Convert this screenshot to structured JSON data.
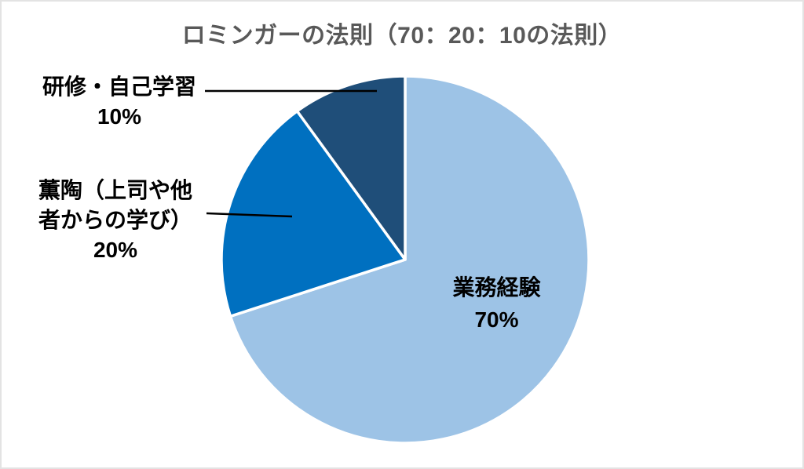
{
  "chart_data": {
    "type": "pie",
    "title": "ロミンガーの法則（70：20：10の法則）",
    "title_color": "#595959",
    "label_color": "#000000",
    "background": "#FFFFFF",
    "start_angle": "12-oclock",
    "direction": "clockwise",
    "slice_border_color": "#FFFFFF",
    "leader_line_color": "#000000",
    "legend": "none",
    "slices": [
      {
        "label": "業務経験",
        "value": 70,
        "percent_text": "70%",
        "color": "#9DC3E6",
        "label_lines": [
          "業務経験"
        ],
        "label_position": "inside"
      },
      {
        "label": "薫陶（上司や他者からの学び）",
        "value": 20,
        "percent_text": "20%",
        "color": "#0070C0",
        "label_lines": [
          "薫陶（上司や他",
          "者からの学び）"
        ],
        "label_position": "outside-left",
        "leader_line": true
      },
      {
        "label": "研修・自己学習",
        "value": 10,
        "percent_text": "10%",
        "color": "#1F4E79",
        "label_lines": [
          "研修・自己学習"
        ],
        "label_position": "outside-top-left",
        "leader_line": true
      }
    ]
  }
}
